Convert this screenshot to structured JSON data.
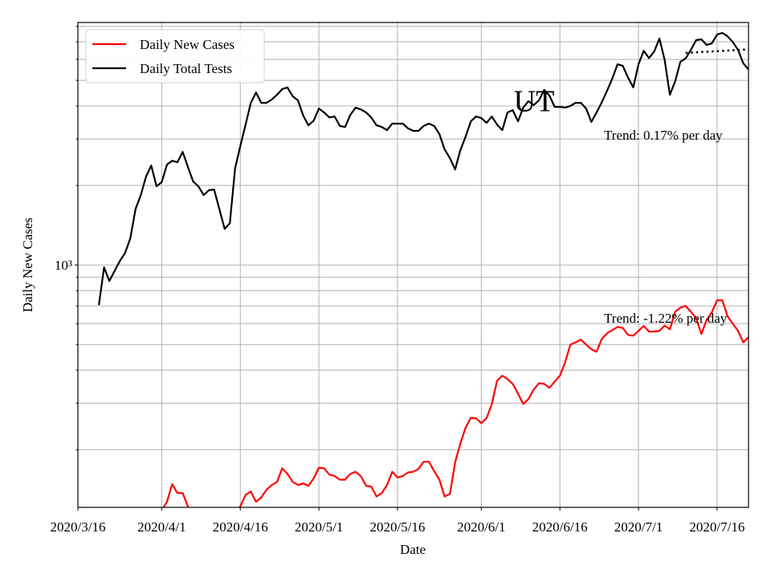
{
  "chart_data": {
    "type": "line",
    "title": "UT",
    "x_label": "Date",
    "y_label": "Daily New Cases",
    "log_y": true,
    "grid": true,
    "legend": "upper left",
    "xlim": [
      "2020/3/16",
      "2020/7/22"
    ],
    "xticks": [
      "2020/3/16",
      "2020/4/1",
      "2020/4/16",
      "2020/5/1",
      "2020/5/16",
      "2020/6/1",
      "2020/6/16",
      "2020/7/1",
      "2020/7/16"
    ],
    "ylim": [
      121,
      8280
    ],
    "yticks": [
      {
        "value": 1000,
        "label": "10³"
      }
    ],
    "yminorticks": [
      200,
      300,
      400,
      500,
      600,
      700,
      800,
      900,
      2000,
      3000,
      4000,
      5000,
      6000,
      7000,
      8000
    ],
    "x": [
      "2020/3/20",
      "2020/3/21",
      "2020/3/22",
      "2020/3/23",
      "2020/3/24",
      "2020/3/25",
      "2020/3/26",
      "2020/3/27",
      "2020/3/28",
      "2020/3/29",
      "2020/3/30",
      "2020/3/31",
      "2020/4/1",
      "2020/4/2",
      "2020/4/3",
      "2020/4/4",
      "2020/4/5",
      "2020/4/6",
      "2020/4/7",
      "2020/4/8",
      "2020/4/9",
      "2020/4/10",
      "2020/4/11",
      "2020/4/12",
      "2020/4/13",
      "2020/4/14",
      "2020/4/15",
      "2020/4/16",
      "2020/4/17",
      "2020/4/18",
      "2020/4/19",
      "2020/4/20",
      "2020/4/21",
      "2020/4/22",
      "2020/4/23",
      "2020/4/24",
      "2020/4/25",
      "2020/4/26",
      "2020/4/27",
      "2020/4/28",
      "2020/4/29",
      "2020/4/30",
      "2020/5/1",
      "2020/5/2",
      "2020/5/3",
      "2020/5/4",
      "2020/5/5",
      "2020/5/6",
      "2020/5/7",
      "2020/5/8",
      "2020/5/9",
      "2020/5/10",
      "2020/5/11",
      "2020/5/12",
      "2020/5/13",
      "2020/5/14",
      "2020/5/15",
      "2020/5/16",
      "2020/5/17",
      "2020/5/18",
      "2020/5/19",
      "2020/5/20",
      "2020/5/21",
      "2020/5/22",
      "2020/5/23",
      "2020/5/24",
      "2020/5/25",
      "2020/5/26",
      "2020/5/27",
      "2020/5/28",
      "2020/5/29",
      "2020/5/30",
      "2020/5/31",
      "2020/6/1",
      "2020/6/2",
      "2020/6/3",
      "2020/6/4",
      "2020/6/5",
      "2020/6/6",
      "2020/6/7",
      "2020/6/8",
      "2020/6/9",
      "2020/6/10",
      "2020/6/11",
      "2020/6/12",
      "2020/6/13",
      "2020/6/14",
      "2020/6/15",
      "2020/6/16",
      "2020/6/17",
      "2020/6/18",
      "2020/6/19",
      "2020/6/20",
      "2020/6/21",
      "2020/6/22",
      "2020/6/23",
      "2020/6/24",
      "2020/6/25",
      "2020/6/26",
      "2020/6/27",
      "2020/6/28",
      "2020/6/29",
      "2020/6/30",
      "2020/7/1",
      "2020/7/2",
      "2020/7/3",
      "2020/7/4",
      "2020/7/5",
      "2020/7/6",
      "2020/7/7",
      "2020/7/8",
      "2020/7/9",
      "2020/7/10",
      "2020/7/11",
      "2020/7/12",
      "2020/7/13",
      "2020/7/14",
      "2020/7/15",
      "2020/7/16",
      "2020/7/17",
      "2020/7/18",
      "2020/7/19",
      "2020/7/20",
      "2020/7/21",
      "2020/7/22"
    ],
    "series": [
      {
        "name": "Daily New Cases",
        "color": "#ff0000",
        "values": [
          null,
          null,
          null,
          null,
          null,
          null,
          null,
          null,
          null,
          null,
          null,
          null,
          118,
          127,
          148,
          137,
          137,
          122,
          110,
          104,
          100,
          98,
          102,
          100,
          104,
          110,
          116,
          122,
          135,
          139,
          127,
          132,
          141,
          147,
          151,
          170,
          162,
          151,
          147,
          149,
          146,
          156,
          171,
          170,
          161,
          159,
          154,
          154,
          162,
          165,
          159,
          146,
          145,
          133,
          137,
          147,
          165,
          157,
          159,
          164,
          165,
          169,
          180,
          180,
          166,
          154,
          133,
          136,
          179,
          211,
          242,
          264,
          263,
          252,
          263,
          298,
          365,
          381,
          370,
          355,
          326,
          298,
          311,
          338,
          357,
          355,
          343,
          362,
          381,
          429,
          500,
          510,
          522,
          500,
          480,
          470,
          525,
          552,
          567,
          583,
          578,
          544,
          540,
          563,
          588,
          560,
          560,
          563,
          590,
          571,
          666,
          690,
          700,
          666,
          630,
          548,
          620,
          662,
          735,
          735,
          640,
          600,
          563,
          510,
          533
        ]
      },
      {
        "name": "Daily Total Tests",
        "color": "#000000",
        "values": [
          705,
          980,
          870,
          950,
          1035,
          1110,
          1260,
          1630,
          1840,
          2160,
          2380,
          1985,
          2060,
          2400,
          2480,
          2450,
          2680,
          2350,
          2070,
          1985,
          1840,
          1920,
          1930,
          1630,
          1370,
          1440,
          2320,
          2820,
          3400,
          4110,
          4500,
          4110,
          4110,
          4230,
          4410,
          4630,
          4700,
          4350,
          4200,
          3680,
          3380,
          3520,
          3910,
          3780,
          3620,
          3650,
          3360,
          3330,
          3700,
          3940,
          3880,
          3780,
          3620,
          3380,
          3330,
          3240,
          3430,
          3430,
          3430,
          3290,
          3220,
          3220,
          3360,
          3430,
          3360,
          3130,
          2740,
          2540,
          2300,
          2720,
          3060,
          3500,
          3650,
          3600,
          3450,
          3650,
          3400,
          3240,
          3780,
          3860,
          3500,
          3940,
          4170,
          4030,
          4200,
          4600,
          4380,
          3970,
          3970,
          3940,
          4000,
          4110,
          4110,
          3910,
          3480,
          3780,
          4130,
          4570,
          5080,
          5750,
          5680,
          5120,
          4700,
          5750,
          6470,
          6070,
          6430,
          7200,
          5970,
          4410,
          4960,
          5880,
          6050,
          6520,
          7100,
          7150,
          6810,
          6900,
          7450,
          7560,
          7340,
          6990,
          6520,
          5800,
          5500
        ]
      }
    ],
    "trend_lines": [
      {
        "x": [
          "2020/7/10",
          "2020/7/22"
        ],
        "values": [
          6350,
          6550
        ],
        "color": "#000000",
        "style": "dotted"
      }
    ],
    "annotations": [
      "Trend: 0.17% per day",
      "Trend: -1.22% per day"
    ]
  }
}
